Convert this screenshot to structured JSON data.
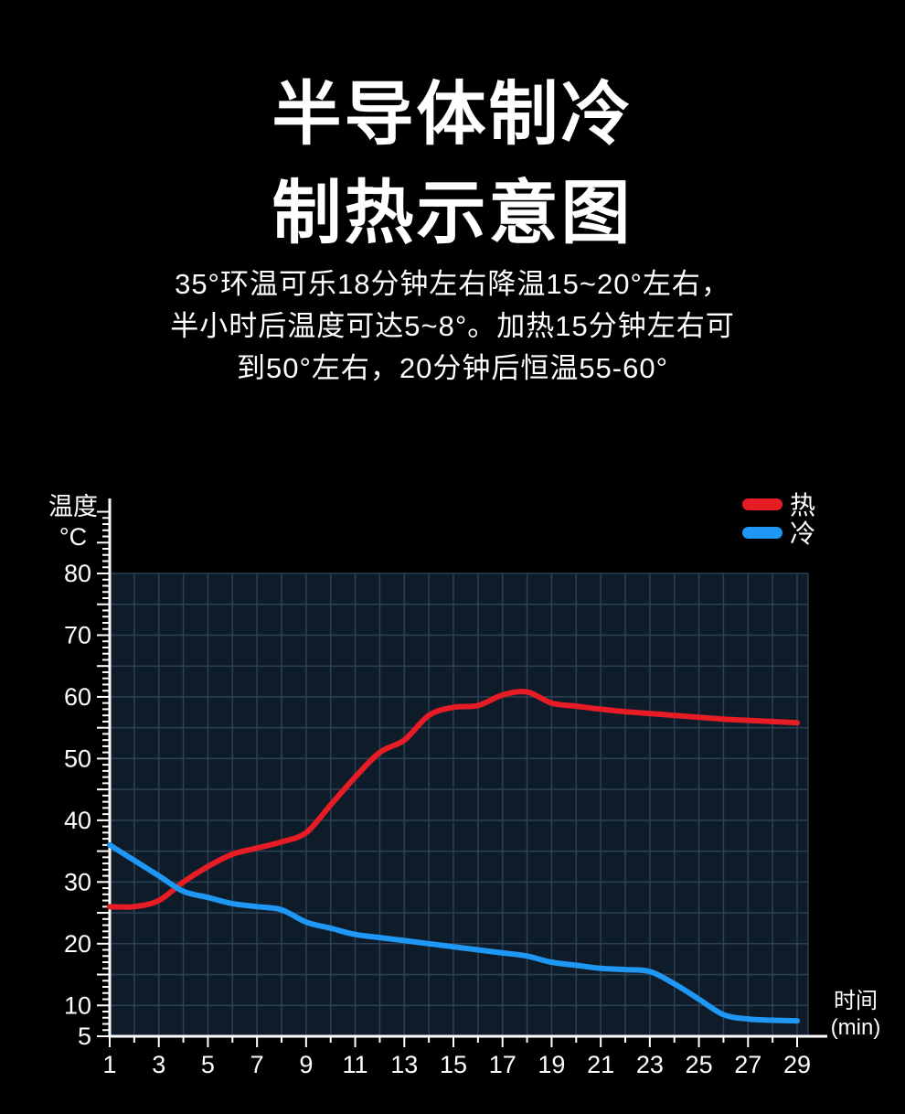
{
  "title": {
    "line1": "半导体制冷",
    "line2": "制热示意图"
  },
  "description": [
    "35°环温可乐18分钟左右降温15~20°左右，",
    "半小时后温度可达5~8°。加热15分钟左右可",
    "到50°左右，20分钟后恒温55-60°"
  ],
  "chart_data": {
    "type": "line",
    "title": "半导体制冷制热示意图",
    "ylabel_line1": "温度",
    "ylabel_line2": "°C",
    "xlabel_line1": "时间",
    "xlabel_line2": "(min)",
    "xlim": [
      1,
      29
    ],
    "ylim": [
      5,
      80
    ],
    "x_ticks": [
      1,
      3,
      5,
      7,
      9,
      11,
      13,
      15,
      17,
      19,
      21,
      23,
      25,
      27,
      29
    ],
    "y_ticks": [
      80,
      70,
      60,
      50,
      40,
      30,
      20,
      10,
      5
    ],
    "grid": true,
    "legend_position": "top-right",
    "colors": {
      "hot": "#e81c24",
      "cold": "#1f97f4",
      "grid_bg": "#0e1c2a",
      "grid_line": "#2b4055",
      "axis": "#ffffff",
      "text": "#ffffff"
    },
    "series": [
      {
        "name": "热",
        "color_key": "hot",
        "x": [
          1,
          2,
          3,
          4,
          5,
          6,
          7,
          8,
          9,
          10,
          11,
          12,
          13,
          14,
          15,
          16,
          17,
          18,
          19,
          20,
          21,
          22,
          23,
          24,
          25,
          26,
          27,
          28,
          29
        ],
        "y": [
          26,
          26,
          27,
          30,
          32.5,
          34.5,
          35.5,
          36.5,
          38,
          42.5,
          47,
          51,
          53,
          57,
          58.3,
          58.6,
          60.3,
          60.8,
          59,
          58.5,
          58,
          57.6,
          57.3,
          57,
          56.7,
          56.4,
          56.2,
          56,
          55.8
        ]
      },
      {
        "name": "冷",
        "color_key": "cold",
        "x": [
          1,
          2,
          3,
          4,
          5,
          6,
          7,
          8,
          9,
          10,
          11,
          12,
          13,
          14,
          15,
          16,
          17,
          18,
          19,
          20,
          21,
          22,
          23,
          24,
          25,
          26,
          27,
          28,
          29
        ],
        "y": [
          36,
          33.5,
          31,
          28.5,
          27.5,
          26.5,
          26,
          25.5,
          23.5,
          22.5,
          21.5,
          21,
          20.5,
          20,
          19.5,
          19,
          18.5,
          18,
          17,
          16.5,
          16,
          15.8,
          15.5,
          13.5,
          11,
          8.5,
          7.8,
          7.6,
          7.5
        ]
      }
    ]
  }
}
